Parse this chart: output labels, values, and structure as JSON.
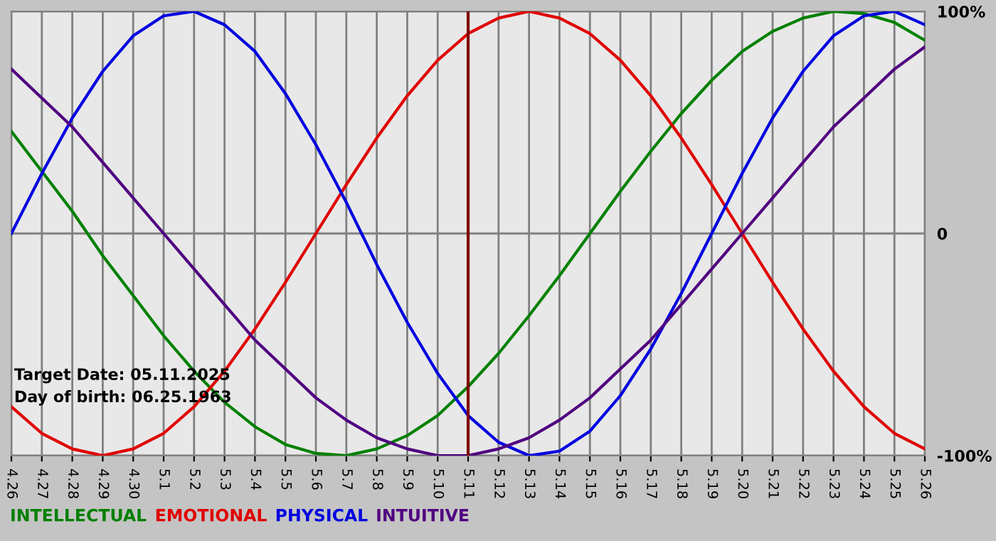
{
  "chart_data": {
    "type": "line",
    "categories": [
      "4.26",
      "4.27",
      "4.28",
      "4.29",
      "4.30",
      "5.1",
      "5.2",
      "5.3",
      "5.4",
      "5.5",
      "5.6",
      "5.7",
      "5.8",
      "5.9",
      "5.10",
      "5.11",
      "5.12",
      "5.13",
      "5.14",
      "5.15",
      "5.16",
      "5.17",
      "5.18",
      "5.19",
      "5.20",
      "5.21",
      "5.22",
      "5.23",
      "5.24",
      "5.25",
      "5.26"
    ],
    "series": [
      {
        "name": "INTELLECTUAL",
        "color": "#008000",
        "values": [
          46,
          28,
          10,
          -10,
          -28,
          -46,
          -62,
          -76,
          -87,
          -95,
          -99,
          -100,
          -97,
          -91,
          -82,
          -69,
          -54,
          -37,
          -19,
          0,
          19,
          37,
          54,
          69,
          82,
          91,
          97,
          100,
          99,
          95,
          87
        ]
      },
      {
        "name": "EMOTIONAL",
        "color": "#e00000",
        "values": [
          -78,
          -90,
          -97,
          -100,
          -97,
          -90,
          -78,
          -62,
          -43,
          -22,
          0,
          22,
          43,
          62,
          78,
          90,
          97,
          100,
          97,
          90,
          78,
          62,
          43,
          22,
          0,
          -22,
          -43,
          -62,
          -78,
          -90,
          -97
        ]
      },
      {
        "name": "PHYSICAL",
        "color": "#0000e0",
        "values": [
          0,
          27,
          52,
          73,
          89,
          98,
          100,
          94,
          82,
          63,
          40,
          14,
          -14,
          -40,
          -63,
          -82,
          -94,
          -100,
          -98,
          -89,
          -73,
          -52,
          -27,
          0,
          27,
          52,
          73,
          89,
          98,
          100,
          94
        ]
      },
      {
        "name": "INTUITIVE",
        "color": "#500080",
        "values": [
          74,
          61,
          48,
          32,
          16,
          0,
          -16,
          -32,
          -48,
          -61,
          -74,
          -84,
          -92,
          -97,
          -100,
          -100,
          -97,
          -92,
          -84,
          -74,
          -61,
          -48,
          -32,
          -16,
          0,
          16,
          32,
          48,
          61,
          74,
          84
        ]
      }
    ],
    "ylim": [
      -100,
      100
    ],
    "yticks": [
      {
        "value": -100,
        "label": "-100%"
      },
      0,
      {
        "value": 100,
        "label": "100%"
      }
    ],
    "grid": true,
    "legend": "bottom",
    "line_style": "solid",
    "marker": "none",
    "ref_lines": [
      {
        "axis": "x",
        "value": "5.11",
        "color": "#800000"
      }
    ],
    "annotations": [
      "Target Date: 05.11.2025",
      "Day of birth: 06.25.1963"
    ]
  }
}
